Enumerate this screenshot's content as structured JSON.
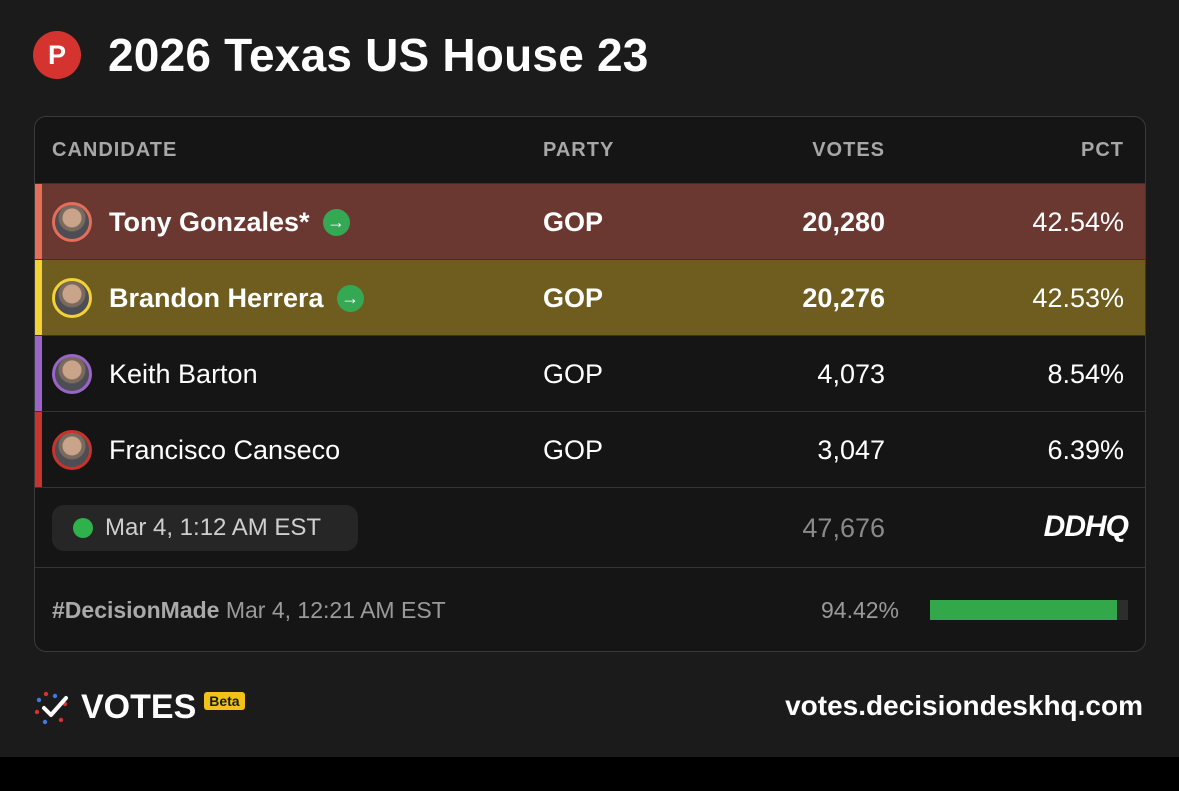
{
  "header": {
    "party_badge": "P",
    "title": "2026 Texas US House 23"
  },
  "table": {
    "columns": {
      "candidate": "CANDIDATE",
      "party": "PARTY",
      "votes": "VOTES",
      "pct": "PCT"
    },
    "rows": [
      {
        "name": "Tony Gonzales*",
        "party": "GOP",
        "votes": "20,280",
        "pct": "42.54%",
        "advancing": true,
        "row_color": "#6b3831",
        "stripe_color": "#e46e57"
      },
      {
        "name": "Brandon Herrera",
        "party": "GOP",
        "votes": "20,276",
        "pct": "42.53%",
        "advancing": true,
        "row_color": "#6e5d1e",
        "stripe_color": "#f2d333"
      },
      {
        "name": "Keith Barton",
        "party": "GOP",
        "votes": "4,073",
        "pct": "8.54%",
        "advancing": false,
        "row_color": "#151515",
        "stripe_color": "#9a64c8"
      },
      {
        "name": "Francisco Canseco",
        "party": "GOP",
        "votes": "3,047",
        "pct": "6.39%",
        "advancing": false,
        "row_color": "#151515",
        "stripe_color": "#c8332c"
      }
    ]
  },
  "footer": {
    "updated": "Mar 4, 1:12 AM EST",
    "total_votes": "47,676",
    "source_logo": "DDHQ",
    "decision_tag": "#DecisionMade",
    "decision_time": "Mar 4, 12:21 AM EST",
    "reporting": "94.42%",
    "reporting_fraction": 0.9442
  },
  "brand": {
    "name": "VOTES",
    "badge": "Beta",
    "site": "votes.decisiondeskhq.com"
  }
}
